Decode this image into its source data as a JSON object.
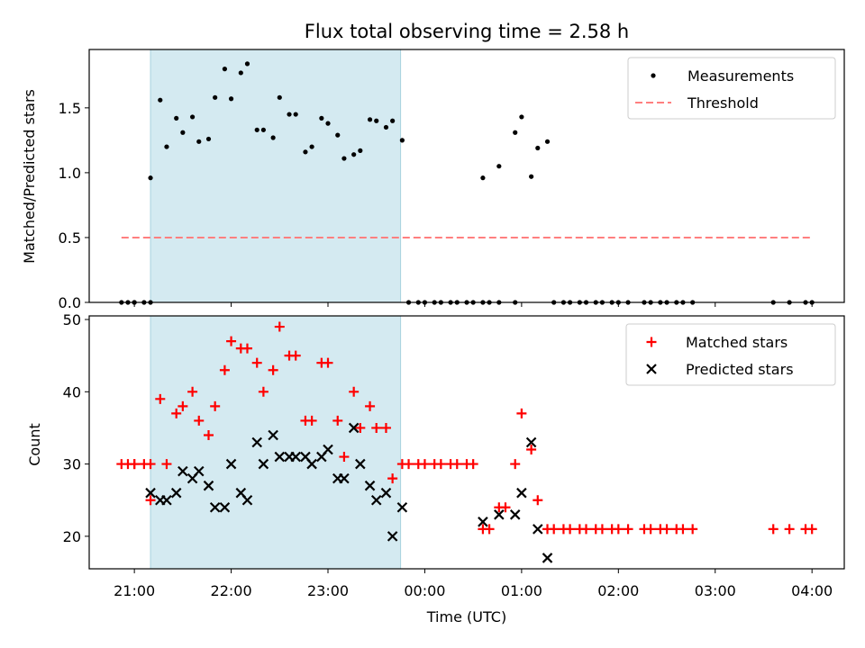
{
  "chart_data": {
    "title": "Flux total observing time = 2.58 h",
    "xlabel": "Time (UTC)",
    "x_ticks": [
      "21:00",
      "22:00",
      "23:00",
      "00:00",
      "01:00",
      "02:00",
      "03:00",
      "04:00"
    ],
    "xlim": [
      "20:32",
      "04:20"
    ],
    "shaded_interval": {
      "start": "21:10",
      "end": "23:45",
      "color": "#d4eaf1"
    },
    "panels": [
      {
        "type": "scatter",
        "ylabel": "Matched/Predicted stars",
        "ylim": [
          0,
          1.95
        ],
        "y_ticks": [
          "0.0",
          "0.5",
          "1.0",
          "1.5"
        ],
        "legend_position": "top-right",
        "legend": [
          "Measurements",
          "Threshold"
        ],
        "threshold": {
          "name": "Threshold",
          "value": 0.5,
          "x_start": "20:52",
          "x_end": "04:00",
          "color": "#ff7f7f",
          "style": "dashed"
        },
        "series": [
          {
            "name": "Measurements",
            "color": "#000000",
            "marker": "dot",
            "points": [
              [
                "20:52",
                0
              ],
              [
                "20:56",
                0
              ],
              [
                "21:00",
                0
              ],
              [
                "21:00",
                0
              ],
              [
                "21:06",
                0
              ],
              [
                "21:10",
                0
              ],
              [
                "21:10",
                0.96
              ],
              [
                "21:16",
                1.56
              ],
              [
                "21:20",
                1.2
              ],
              [
                "21:26",
                1.42
              ],
              [
                "21:30",
                1.31
              ],
              [
                "21:36",
                1.43
              ],
              [
                "21:40",
                1.24
              ],
              [
                "21:46",
                1.26
              ],
              [
                "21:50",
                1.58
              ],
              [
                "21:56",
                1.8
              ],
              [
                "22:00",
                1.57
              ],
              [
                "22:06",
                1.77
              ],
              [
                "22:10",
                1.84
              ],
              [
                "22:16",
                1.33
              ],
              [
                "22:20",
                1.33
              ],
              [
                "22:26",
                1.27
              ],
              [
                "22:30",
                1.58
              ],
              [
                "22:36",
                1.45
              ],
              [
                "22:40",
                1.45
              ],
              [
                "22:46",
                1.16
              ],
              [
                "22:50",
                1.2
              ],
              [
                "22:56",
                1.42
              ],
              [
                "23:00",
                1.38
              ],
              [
                "23:06",
                1.29
              ],
              [
                "23:10",
                1.11
              ],
              [
                "23:16",
                1.14
              ],
              [
                "23:20",
                1.17
              ],
              [
                "23:26",
                1.41
              ],
              [
                "23:30",
                1.4
              ],
              [
                "23:36",
                1.35
              ],
              [
                "23:40",
                1.4
              ],
              [
                "23:46",
                1.25
              ],
              [
                "23:50",
                0
              ],
              [
                "23:56",
                0
              ],
              [
                "00:00",
                0
              ],
              [
                "00:06",
                0
              ],
              [
                "00:10",
                0
              ],
              [
                "00:16",
                0
              ],
              [
                "00:20",
                0
              ],
              [
                "00:26",
                0
              ],
              [
                "00:30",
                0
              ],
              [
                "00:36",
                0
              ],
              [
                "00:40",
                0
              ],
              [
                "00:46",
                0
              ],
              [
                "00:56",
                0
              ],
              [
                "00:36",
                0.96
              ],
              [
                "00:46",
                1.05
              ],
              [
                "00:56",
                1.31
              ],
              [
                "01:00",
                1.43
              ],
              [
                "01:06",
                0.97
              ],
              [
                "01:10",
                1.19
              ],
              [
                "01:16",
                1.24
              ],
              [
                "01:20",
                0
              ],
              [
                "01:26",
                0
              ],
              [
                "01:30",
                0
              ],
              [
                "01:36",
                0
              ],
              [
                "01:40",
                0
              ],
              [
                "01:46",
                0
              ],
              [
                "01:50",
                0
              ],
              [
                "01:56",
                0
              ],
              [
                "02:00",
                0
              ],
              [
                "02:06",
                0
              ],
              [
                "02:16",
                0
              ],
              [
                "02:20",
                0
              ],
              [
                "02:26",
                0
              ],
              [
                "02:30",
                0
              ],
              [
                "02:36",
                0
              ],
              [
                "02:40",
                0
              ],
              [
                "02:46",
                0
              ],
              [
                "03:36",
                0
              ],
              [
                "03:46",
                0
              ],
              [
                "03:56",
                0
              ],
              [
                "04:00",
                0
              ]
            ]
          }
        ]
      },
      {
        "type": "scatter",
        "ylabel": "Count",
        "ylim": [
          15.5,
          50.5
        ],
        "y_ticks": [
          "20",
          "30",
          "40",
          "50"
        ],
        "legend_position": "top-right",
        "legend": [
          "Matched stars",
          "Predicted stars"
        ],
        "series": [
          {
            "name": "Matched stars",
            "color": "#ff0000",
            "marker": "plus",
            "points": [
              [
                "20:52",
                30
              ],
              [
                "20:56",
                30
              ],
              [
                "21:00",
                30
              ],
              [
                "21:00",
                30
              ],
              [
                "21:06",
                30
              ],
              [
                "21:10",
                30
              ],
              [
                "21:10",
                25
              ],
              [
                "21:16",
                39
              ],
              [
                "21:20",
                30
              ],
              [
                "21:26",
                37
              ],
              [
                "21:30",
                38
              ],
              [
                "21:36",
                40
              ],
              [
                "21:40",
                36
              ],
              [
                "21:46",
                34
              ],
              [
                "21:50",
                38
              ],
              [
                "21:56",
                43
              ],
              [
                "22:00",
                47
              ],
              [
                "22:06",
                46
              ],
              [
                "22:10",
                46
              ],
              [
                "22:16",
                44
              ],
              [
                "22:20",
                40
              ],
              [
                "22:26",
                43
              ],
              [
                "22:30",
                49
              ],
              [
                "22:36",
                45
              ],
              [
                "22:40",
                45
              ],
              [
                "22:46",
                36
              ],
              [
                "22:50",
                36
              ],
              [
                "22:56",
                44
              ],
              [
                "23:00",
                44
              ],
              [
                "23:06",
                36
              ],
              [
                "23:10",
                31
              ],
              [
                "23:16",
                40
              ],
              [
                "23:20",
                35
              ],
              [
                "23:26",
                38
              ],
              [
                "23:30",
                35
              ],
              [
                "23:36",
                35
              ],
              [
                "23:40",
                28
              ],
              [
                "23:46",
                30
              ],
              [
                "23:50",
                30
              ],
              [
                "23:56",
                30
              ],
              [
                "00:00",
                30
              ],
              [
                "00:06",
                30
              ],
              [
                "00:10",
                30
              ],
              [
                "00:16",
                30
              ],
              [
                "00:20",
                30
              ],
              [
                "00:26",
                30
              ],
              [
                "00:30",
                30
              ],
              [
                "00:36",
                21
              ],
              [
                "00:40",
                21
              ],
              [
                "00:46",
                24
              ],
              [
                "00:50",
                24
              ],
              [
                "00:56",
                30
              ],
              [
                "01:00",
                37
              ],
              [
                "01:06",
                32
              ],
              [
                "01:10",
                25
              ],
              [
                "01:16",
                21
              ],
              [
                "01:20",
                21
              ],
              [
                "01:26",
                21
              ],
              [
                "01:30",
                21
              ],
              [
                "01:36",
                21
              ],
              [
                "01:40",
                21
              ],
              [
                "01:46",
                21
              ],
              [
                "01:50",
                21
              ],
              [
                "01:56",
                21
              ],
              [
                "02:00",
                21
              ],
              [
                "02:06",
                21
              ],
              [
                "02:16",
                21
              ],
              [
                "02:20",
                21
              ],
              [
                "02:26",
                21
              ],
              [
                "02:30",
                21
              ],
              [
                "02:36",
                21
              ],
              [
                "02:40",
                21
              ],
              [
                "02:46",
                21
              ],
              [
                "03:36",
                21
              ],
              [
                "03:46",
                21
              ],
              [
                "03:56",
                21
              ],
              [
                "04:00",
                21
              ]
            ]
          },
          {
            "name": "Predicted stars",
            "color": "#000000",
            "marker": "x",
            "points": [
              [
                "21:10",
                26
              ],
              [
                "21:16",
                25
              ],
              [
                "21:20",
                25
              ],
              [
                "21:26",
                26
              ],
              [
                "21:30",
                29
              ],
              [
                "21:36",
                28
              ],
              [
                "21:40",
                29
              ],
              [
                "21:46",
                27
              ],
              [
                "21:50",
                24
              ],
              [
                "21:56",
                24
              ],
              [
                "22:00",
                30
              ],
              [
                "22:06",
                26
              ],
              [
                "22:10",
                25
              ],
              [
                "22:16",
                33
              ],
              [
                "22:20",
                30
              ],
              [
                "22:26",
                34
              ],
              [
                "22:30",
                31
              ],
              [
                "22:36",
                31
              ],
              [
                "22:40",
                31
              ],
              [
                "22:46",
                31
              ],
              [
                "22:50",
                30
              ],
              [
                "22:56",
                31
              ],
              [
                "23:00",
                32
              ],
              [
                "23:06",
                28
              ],
              [
                "23:10",
                28
              ],
              [
                "23:16",
                35
              ],
              [
                "23:20",
                30
              ],
              [
                "23:26",
                27
              ],
              [
                "23:30",
                25
              ],
              [
                "23:36",
                26
              ],
              [
                "23:40",
                20
              ],
              [
                "23:46",
                24
              ],
              [
                "00:36",
                22
              ],
              [
                "00:46",
                23
              ],
              [
                "00:56",
                23
              ],
              [
                "01:00",
                26
              ],
              [
                "01:06",
                33
              ],
              [
                "01:10",
                21
              ],
              [
                "01:16",
                17
              ]
            ]
          }
        ]
      }
    ]
  }
}
